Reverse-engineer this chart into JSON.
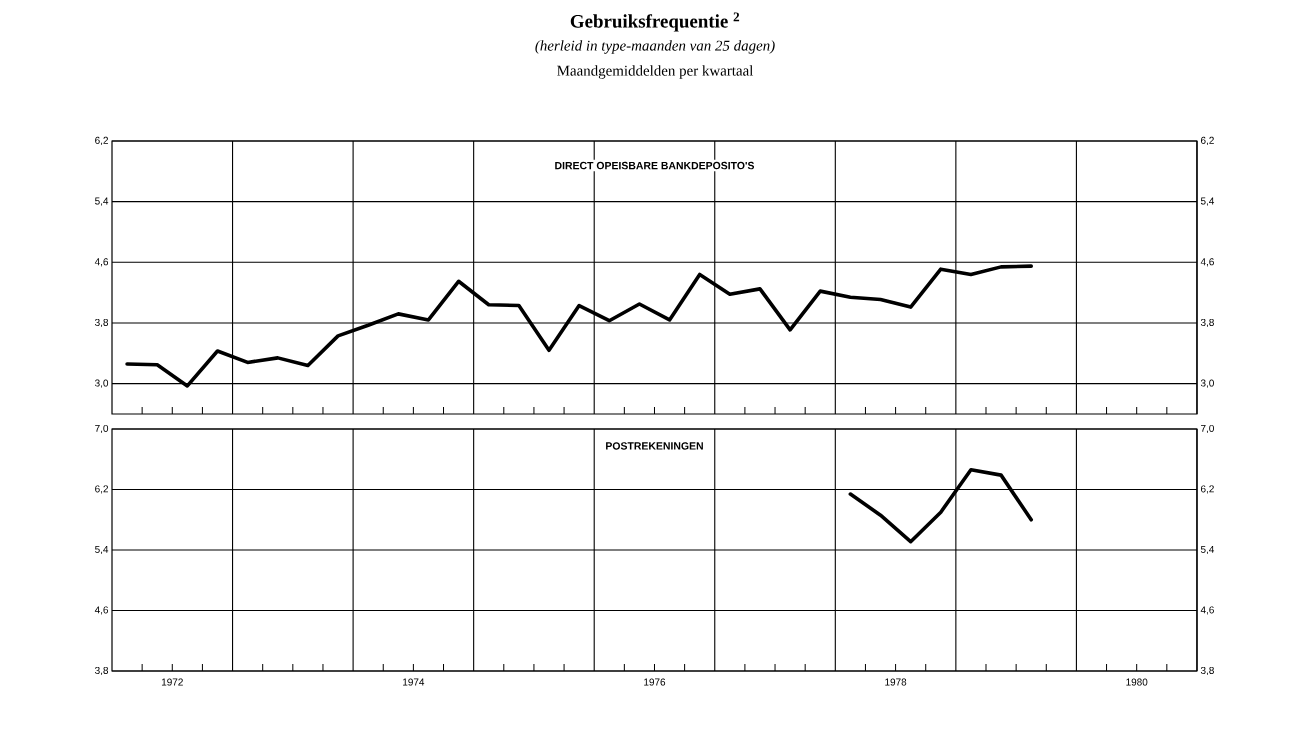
{
  "chart_data": [
    {
      "type": "line",
      "title": "Gebruiksfrequentie $^{2}$",
      "subtitle": "(herleid in type-maanden van 25 dagen)",
      "annotations": [
        "Maandgemiddelden per kwartaal"
      ],
      "x": [
        1972.125,
        1972.375,
        1972.625,
        1972.875,
        1973.125,
        1973.375,
        1973.625,
        1973.875,
        1974.125,
        1974.375,
        1974.625,
        1974.875,
        1975.125,
        1975.375,
        1975.625,
        1975.875,
        1976.125,
        1976.375,
        1976.625,
        1976.875,
        1977.125,
        1977.375,
        1977.625,
        1977.875,
        1978.125,
        1978.375,
        1978.625,
        1978.875,
        1979.125,
        1979.375,
        1979.625
      ],
      "series": [
        {
          "name": "DIRECT OPEISBARE BANKDEPOSITO'S",
          "color": "#000000",
          "values": [
            3.26,
            3.25,
            2.97,
            3.43,
            3.28,
            3.34,
            3.24,
            3.63,
            3.77,
            3.92,
            3.84,
            4.35,
            4.04,
            4.03,
            3.44,
            4.03,
            3.83,
            4.05,
            3.84,
            4.44,
            4.18,
            4.25,
            3.71,
            4.22,
            4.14,
            4.11,
            4.01,
            4.51,
            4.44,
            4.54,
            4.55
          ]
        }
      ],
      "xlim": [
        1972,
        1981
      ],
      "xticks": [
        {
          "value": 1972.25,
          "label": null
        },
        {
          "value": 1972.5,
          "label": null
        },
        {
          "value": 1972.75,
          "label": null
        },
        {
          "value": 1973.25,
          "label": null
        },
        {
          "value": 1973.5,
          "label": null
        },
        {
          "value": 1973.75,
          "label": null
        },
        {
          "value": 1974.25,
          "label": null
        },
        {
          "value": 1974.5,
          "label": null
        },
        {
          "value": 1974.75,
          "label": null
        },
        {
          "value": 1975.25,
          "label": null
        },
        {
          "value": 1975.5,
          "label": null
        },
        {
          "value": 1975.75,
          "label": null
        },
        {
          "value": 1976.25,
          "label": null
        },
        {
          "value": 1976.5,
          "label": null
        },
        {
          "value": 1976.75,
          "label": null
        },
        {
          "value": 1977.25,
          "label": null
        },
        {
          "value": 1977.5,
          "label": null
        },
        {
          "value": 1977.75,
          "label": null
        },
        {
          "value": 1978.25,
          "label": null
        },
        {
          "value": 1978.5,
          "label": null
        },
        {
          "value": 1978.75,
          "label": null
        },
        {
          "value": 1979.25,
          "label": null
        },
        {
          "value": 1979.5,
          "label": null
        },
        {
          "value": 1979.75,
          "label": null
        },
        {
          "value": 1980.25,
          "label": null
        },
        {
          "value": 1980.5,
          "label": null
        },
        {
          "value": 1980.75,
          "label": null
        }
      ],
      "ylim": [
        2.6,
        6.2
      ],
      "yticks": [
        {
          "value": 3.0,
          "label": "3,0"
        },
        {
          "value": 3.8,
          "label": "3,8"
        },
        {
          "value": 4.6,
          "label": "4,6"
        },
        {
          "value": 5.4,
          "label": "5,4"
        },
        {
          "value": 6.2,
          "label": "6,2"
        }
      ],
      "y2lim": [
        2.6,
        6.2
      ],
      "y2ticks": [
        {
          "value": 3.0,
          "label": "3,0"
        },
        {
          "value": 3.8,
          "label": "3,8"
        },
        {
          "value": 4.6,
          "label": "4,6"
        },
        {
          "value": 5.4,
          "label": "5,4"
        },
        {
          "value": 6.2,
          "label": "6,2"
        }
      ],
      "ref_lines": [
        {
          "axis": "x",
          "value": 1973,
          "color": "#000000"
        },
        {
          "axis": "x",
          "value": 1974,
          "color": "#000000"
        },
        {
          "axis": "x",
          "value": 1975,
          "color": "#000000"
        },
        {
          "axis": "x",
          "value": 1976,
          "color": "#000000"
        },
        {
          "axis": "x",
          "value": 1977,
          "color": "#000000"
        },
        {
          "axis": "x",
          "value": 1978,
          "color": "#000000"
        },
        {
          "axis": "x",
          "value": 1979,
          "color": "#000000"
        },
        {
          "axis": "x",
          "value": 1980,
          "color": "#000000"
        }
      ],
      "grid": "y",
      "tick_labels": "y"
    },
    {
      "type": "line",
      "x": [
        1978.125,
        1978.375,
        1978.625,
        1978.875,
        1979.125,
        1979.375,
        1979.625
      ],
      "series": [
        {
          "name": "POSTREKENINGEN",
          "color": "#000000",
          "values": [
            6.14,
            5.86,
            5.51,
            5.9,
            6.46,
            6.39,
            5.8
          ]
        }
      ],
      "xlim": [
        1972,
        1981
      ],
      "xticks": [
        {
          "value": 1972.25,
          "label": null
        },
        {
          "value": 1972.5,
          "label": "1972"
        },
        {
          "value": 1972.75,
          "label": null
        },
        {
          "value": 1973.25,
          "label": null
        },
        {
          "value": 1973.5,
          "label": null
        },
        {
          "value": 1973.75,
          "label": null
        },
        {
          "value": 1974.25,
          "label": null
        },
        {
          "value": 1974.5,
          "label": "1974"
        },
        {
          "value": 1974.75,
          "label": null
        },
        {
          "value": 1975.25,
          "label": null
        },
        {
          "value": 1975.5,
          "label": null
        },
        {
          "value": 1975.75,
          "label": null
        },
        {
          "value": 1976.25,
          "label": null
        },
        {
          "value": 1976.5,
          "label": "1976"
        },
        {
          "value": 1976.75,
          "label": null
        },
        {
          "value": 1977.25,
          "label": null
        },
        {
          "value": 1977.5,
          "label": null
        },
        {
          "value": 1977.75,
          "label": null
        },
        {
          "value": 1978.25,
          "label": null
        },
        {
          "value": 1978.5,
          "label": "1978"
        },
        {
          "value": 1978.75,
          "label": null
        },
        {
          "value": 1979.25,
          "label": null
        },
        {
          "value": 1979.5,
          "label": null
        },
        {
          "value": 1979.75,
          "label": null
        },
        {
          "value": 1980.25,
          "label": null
        },
        {
          "value": 1980.5,
          "label": "1980"
        },
        {
          "value": 1980.75,
          "label": null
        }
      ],
      "ylim": [
        3.8,
        7.0
      ],
      "yticks": [
        {
          "value": 3.8,
          "label": "3,8"
        },
        {
          "value": 4.6,
          "label": "4,6"
        },
        {
          "value": 5.4,
          "label": "5,4"
        },
        {
          "value": 6.2,
          "label": "6,2"
        },
        {
          "value": 7.0,
          "label": "7,0"
        }
      ],
      "y2lim": [
        3.8,
        7.0
      ],
      "y2ticks": [
        {
          "value": 3.8,
          "label": "3,8"
        },
        {
          "value": 4.6,
          "label": "4,6"
        },
        {
          "value": 5.4,
          "label": "5,4"
        },
        {
          "value": 6.2,
          "label": "6,2"
        },
        {
          "value": 7.0,
          "label": "7,0"
        }
      ],
      "ref_lines": [
        {
          "axis": "x",
          "value": 1973,
          "color": "#000000"
        },
        {
          "axis": "x",
          "value": 1974,
          "color": "#000000"
        },
        {
          "axis": "x",
          "value": 1975,
          "color": "#000000"
        },
        {
          "axis": "x",
          "value": 1976,
          "color": "#000000"
        },
        {
          "axis": "x",
          "value": 1977,
          "color": "#000000"
        },
        {
          "axis": "x",
          "value": 1978,
          "color": "#000000"
        },
        {
          "axis": "x",
          "value": 1979,
          "color": "#000000"
        },
        {
          "axis": "x",
          "value": 1980,
          "color": "#000000"
        }
      ],
      "grid": "y"
    }
  ]
}
